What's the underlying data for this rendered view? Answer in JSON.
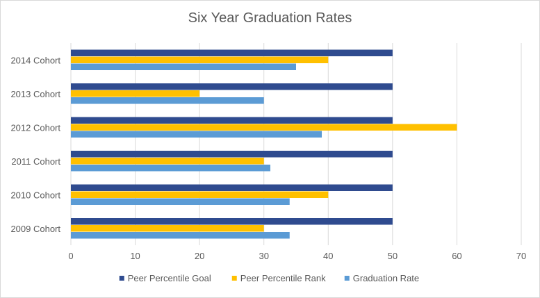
{
  "chart_data": {
    "type": "bar",
    "orientation": "horizontal",
    "title": "Six Year Graduation Rates",
    "categories": [
      "2014 Cohort",
      "2013 Cohort",
      "2012 Cohort",
      "2011 Cohort",
      "2010 Cohort",
      "2009 Cohort"
    ],
    "series": [
      {
        "name": "Peer Percentile Goal",
        "color": "#2f4b8f",
        "values": [
          50,
          50,
          50,
          50,
          50,
          50
        ]
      },
      {
        "name": "Peer Percentile Rank",
        "color": "#ffc000",
        "values": [
          40,
          20,
          60,
          30,
          40,
          30
        ]
      },
      {
        "name": "Graduation Rate",
        "color": "#5b9bd5",
        "values": [
          35,
          30,
          39,
          31,
          34,
          34
        ]
      }
    ],
    "xlim": [
      0,
      70
    ],
    "xticks": [
      0,
      10,
      20,
      30,
      40,
      50,
      60,
      70
    ],
    "grid": true,
    "legend": "bottom"
  }
}
